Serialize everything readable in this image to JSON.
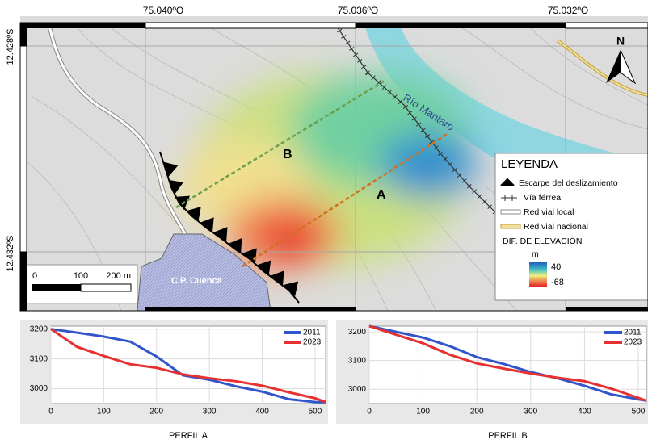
{
  "map": {
    "lon_labels": [
      "75.040ºO",
      "75.036ºO",
      "75.032ºO"
    ],
    "lat_labels": [
      "12.428ºS",
      "12.432ºS"
    ],
    "north": "N",
    "river": "Río Mantaro",
    "profile_labels": [
      "A",
      "B"
    ],
    "town": "C.P. Cuenca",
    "scale_labels": [
      "0",
      "100",
      "200 m"
    ],
    "legend": {
      "title": "LEYENDA",
      "items": [
        "Escarpe del deslizamiento",
        "Vía férrea",
        "Red vial local",
        "Red vial nacional"
      ],
      "elevation_title": "DIF. DE ELEVACIÓN",
      "unit": "m",
      "max": 40,
      "min": -68
    }
  },
  "chart_data": [
    {
      "type": "line",
      "title": "PERFIL A",
      "x": [
        0,
        50,
        100,
        150,
        200,
        250,
        300,
        350,
        400,
        450,
        500,
        520
      ],
      "series": [
        {
          "name": "2011",
          "color": "#3355cc",
          "values": [
            3200,
            3188,
            3175,
            3158,
            3108,
            3045,
            3030,
            3008,
            2990,
            2965,
            2955,
            2955
          ]
        },
        {
          "name": "2023",
          "color": "#e83030",
          "values": [
            3200,
            3140,
            3110,
            3082,
            3070,
            3048,
            3035,
            3025,
            3010,
            2988,
            2968,
            2955
          ]
        }
      ],
      "xlim": [
        0,
        520
      ],
      "ylim": [
        2950,
        3210
      ],
      "xticks": [
        0,
        100,
        200,
        300,
        400,
        500
      ],
      "yticks": [
        3000,
        3100,
        3200
      ],
      "grid": true
    },
    {
      "type": "line",
      "title": "PERFIL B",
      "x": [
        0,
        50,
        100,
        150,
        200,
        250,
        300,
        350,
        400,
        450,
        500,
        515
      ],
      "series": [
        {
          "name": "2011",
          "color": "#3355cc",
          "values": [
            3220,
            3200,
            3180,
            3150,
            3112,
            3088,
            3060,
            3038,
            3012,
            2982,
            2965,
            2960
          ]
        },
        {
          "name": "2023",
          "color": "#e83030",
          "values": [
            3220,
            3190,
            3160,
            3120,
            3090,
            3072,
            3055,
            3040,
            3028,
            3002,
            2970,
            2960
          ]
        }
      ],
      "xlim": [
        0,
        515
      ],
      "ylim": [
        2950,
        3220
      ],
      "xticks": [
        0,
        100,
        200,
        300,
        400,
        500
      ],
      "yticks": [
        3000,
        3100,
        3200
      ],
      "grid": true
    }
  ]
}
